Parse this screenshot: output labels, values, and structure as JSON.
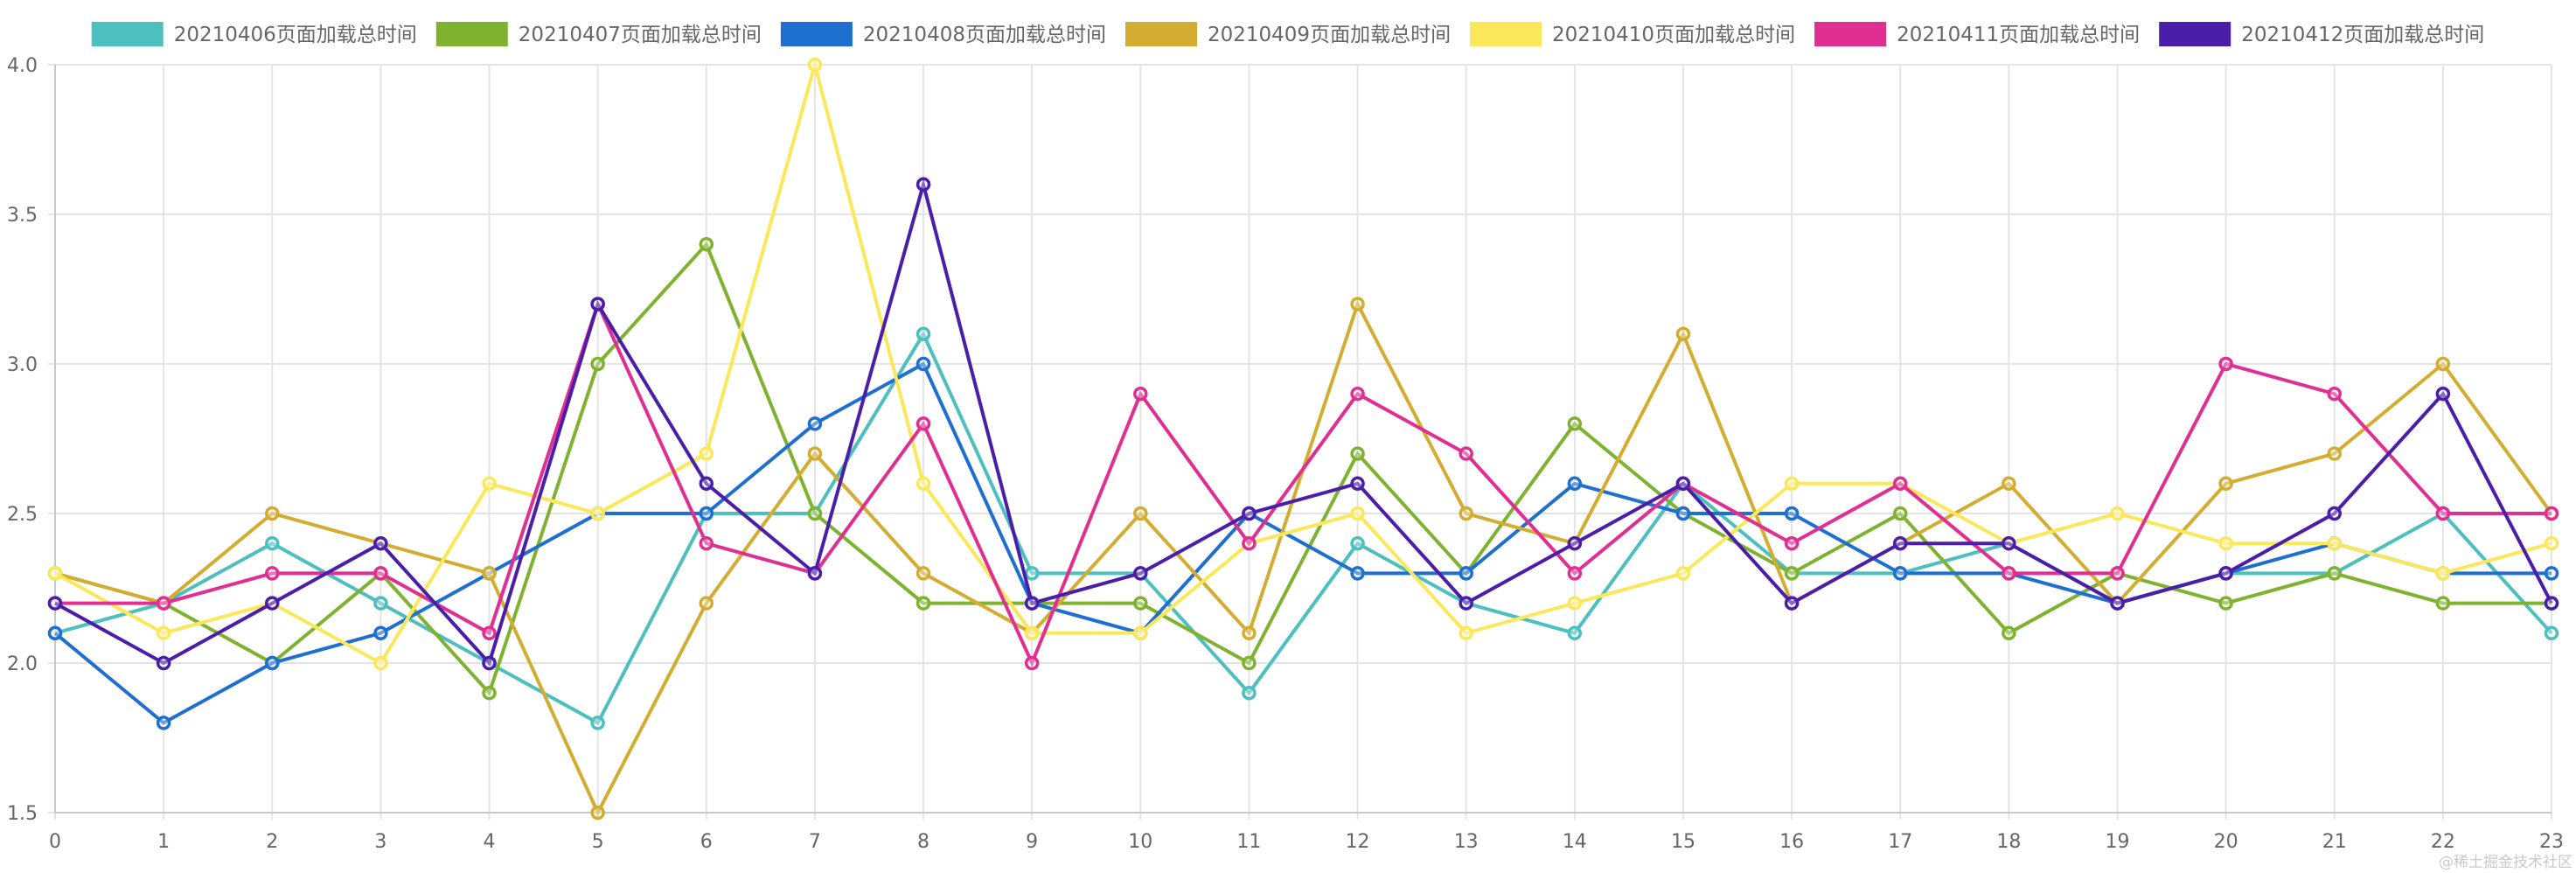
{
  "chart_data": {
    "type": "line",
    "x": [
      0,
      1,
      2,
      3,
      4,
      5,
      6,
      7,
      8,
      9,
      10,
      11,
      12,
      13,
      14,
      15,
      16,
      17,
      18,
      19,
      20,
      21,
      22,
      23
    ],
    "ylim": [
      1.5,
      4.0
    ],
    "yticks": [
      "1.5",
      "2.0",
      "2.5",
      "3.0",
      "3.5",
      "4.0"
    ],
    "grid": true,
    "legend_position": "top",
    "series": [
      {
        "name": "20210406页面加载总时间",
        "color": "#4dbfbf",
        "values": [
          2.1,
          2.2,
          2.4,
          2.2,
          2.0,
          1.8,
          2.5,
          2.5,
          3.1,
          2.3,
          2.3,
          1.9,
          2.4,
          2.2,
          2.1,
          2.6,
          2.3,
          2.3,
          2.4,
          2.2,
          2.3,
          2.3,
          2.5,
          2.1
        ]
      },
      {
        "name": "20210407页面加载总时间",
        "color": "#7fb22f",
        "values": [
          2.3,
          2.2,
          2.0,
          2.3,
          1.9,
          3.0,
          3.4,
          2.5,
          2.2,
          2.2,
          2.2,
          2.0,
          2.7,
          2.3,
          2.8,
          2.5,
          2.3,
          2.5,
          2.1,
          2.3,
          2.2,
          2.3,
          2.2,
          2.2
        ]
      },
      {
        "name": "20210408页面加载总时间",
        "color": "#1e6fd0",
        "values": [
          2.1,
          1.8,
          2.0,
          2.1,
          2.3,
          2.5,
          2.5,
          2.8,
          3.0,
          2.2,
          2.1,
          2.5,
          2.3,
          2.3,
          2.6,
          2.5,
          2.5,
          2.3,
          2.3,
          2.2,
          2.3,
          2.4,
          2.3,
          2.3
        ]
      },
      {
        "name": "20210409页面加载总时间",
        "color": "#d3ad32",
        "values": [
          2.3,
          2.2,
          2.5,
          2.4,
          2.3,
          1.5,
          2.2,
          2.7,
          2.3,
          2.1,
          2.5,
          2.1,
          3.2,
          2.5,
          2.4,
          3.1,
          2.2,
          2.4,
          2.6,
          2.2,
          2.6,
          2.7,
          3.0,
          2.5
        ]
      },
      {
        "name": "20210410页面加载总时间",
        "color": "#fbe85a",
        "values": [
          2.3,
          2.1,
          2.2,
          2.0,
          2.6,
          2.5,
          2.7,
          4.0,
          2.6,
          2.1,
          2.1,
          2.4,
          2.5,
          2.1,
          2.2,
          2.3,
          2.6,
          2.6,
          2.4,
          2.5,
          2.4,
          2.4,
          2.3,
          2.4
        ]
      },
      {
        "name": "20210411页面加载总时间",
        "color": "#e02f92",
        "values": [
          2.2,
          2.2,
          2.3,
          2.3,
          2.1,
          3.2,
          2.4,
          2.3,
          2.8,
          2.0,
          2.9,
          2.4,
          2.9,
          2.7,
          2.3,
          2.6,
          2.4,
          2.6,
          2.3,
          2.3,
          3.0,
          2.9,
          2.5,
          2.5
        ]
      },
      {
        "name": "20210412页面加载总时间",
        "color": "#4a1ea8",
        "values": [
          2.2,
          2.0,
          2.2,
          2.4,
          2.0,
          3.2,
          2.6,
          2.3,
          3.6,
          2.2,
          2.3,
          2.5,
          2.6,
          2.2,
          2.4,
          2.6,
          2.2,
          2.4,
          2.4,
          2.2,
          2.3,
          2.5,
          2.9,
          2.2
        ]
      }
    ]
  },
  "watermark": "@稀土掘金技术社区"
}
